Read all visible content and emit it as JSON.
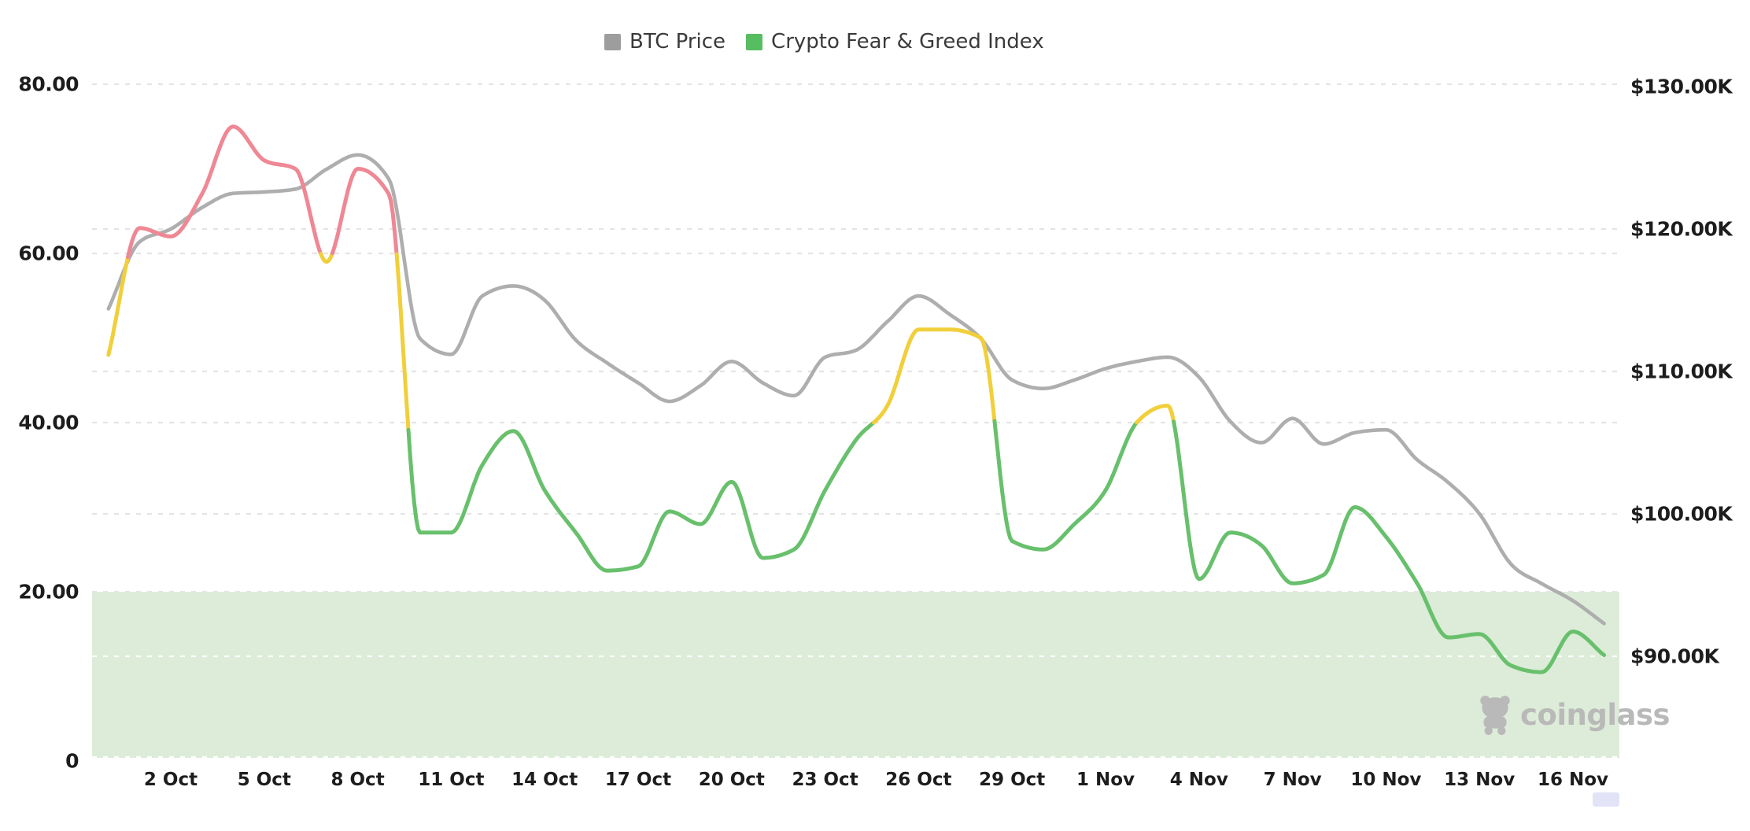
{
  "legend": {
    "items": [
      {
        "label": "BTC Price",
        "color": "#9d9d9d"
      },
      {
        "label": "Crypto Fear & Greed Index",
        "color": "#57bd61"
      }
    ]
  },
  "watermark": {
    "text": "coinglass"
  },
  "chart_data": {
    "type": "line",
    "title": "",
    "x": [
      "30 Sep",
      "1 Oct",
      "2 Oct",
      "3 Oct",
      "4 Oct",
      "5 Oct",
      "6 Oct",
      "7 Oct",
      "8 Oct",
      "9 Oct",
      "10 Oct",
      "11 Oct",
      "12 Oct",
      "13 Oct",
      "14 Oct",
      "15 Oct",
      "16 Oct",
      "17 Oct",
      "18 Oct",
      "19 Oct",
      "20 Oct",
      "21 Oct",
      "22 Oct",
      "23 Oct",
      "24 Oct",
      "25 Oct",
      "26 Oct",
      "27 Oct",
      "28 Oct",
      "29 Oct",
      "30 Oct",
      "31 Oct",
      "1 Nov",
      "2 Nov",
      "3 Nov",
      "4 Nov",
      "5 Nov",
      "6 Nov",
      "7 Nov",
      "8 Nov",
      "9 Nov",
      "10 Nov",
      "11 Nov",
      "12 Nov",
      "13 Nov",
      "14 Nov",
      "15 Nov",
      "16 Nov",
      "17 Nov"
    ],
    "x_tick_labels": [
      "2 Oct",
      "5 Oct",
      "8 Oct",
      "11 Oct",
      "14 Oct",
      "17 Oct",
      "20 Oct",
      "23 Oct",
      "26 Oct",
      "29 Oct",
      "1 Nov",
      "4 Nov",
      "7 Nov",
      "10 Nov",
      "13 Nov",
      "16 Nov"
    ],
    "left_axis": {
      "ticks": [
        "80.00",
        "60.00",
        "40.00",
        "20.00",
        "0"
      ],
      "values": [
        80,
        60,
        40,
        20,
        0
      ],
      "range": [
        0,
        80
      ]
    },
    "right_axis": {
      "ticks": [
        "$130.00K",
        "$120.00K",
        "$110.00K",
        "$100.00K",
        "$90.00K"
      ],
      "values_usd_k": [
        130,
        120,
        110,
        100,
        90
      ],
      "range_usd_k": [
        90,
        130
      ]
    },
    "series": [
      {
        "name": "BTC Price",
        "axis": "right",
        "unit": "USD thousands",
        "color": "#aeaeae",
        "values": [
          114.4,
          119.1,
          120.0,
          121.5,
          122.5,
          122.6,
          122.8,
          124.2,
          125.2,
          123.5,
          112.3,
          111.2,
          115.3,
          116.0,
          115.0,
          112.2,
          110.6,
          109.2,
          107.9,
          109.0,
          110.7,
          109.2,
          108.3,
          111.0,
          111.5,
          113.5,
          115.3,
          114.0,
          112.3,
          109.4,
          108.8,
          109.4,
          110.2,
          110.7,
          111.0,
          109.6,
          106.5,
          105.0,
          106.7,
          104.9,
          105.7,
          105.9,
          103.8,
          102.2,
          100.0,
          96.5,
          95.1,
          93.9,
          92.3
        ]
      },
      {
        "name": "Crypto Fear & Greed Index",
        "axis": "left",
        "unit": "index 0-100",
        "zone_colors": {
          "greed_above_60": "#ef8794",
          "neutral_40_to_60": "#f1cf3b",
          "fear_below_40": "#68c06c"
        },
        "values": [
          48,
          63,
          62,
          67,
          75,
          71,
          70,
          59,
          70,
          67,
          27,
          27,
          35,
          39,
          32,
          27,
          22.5,
          23,
          29.5,
          28,
          33,
          24,
          25,
          32,
          38,
          42,
          51,
          51,
          50,
          26,
          25,
          28,
          32,
          40,
          42,
          21.5,
          27,
          25.5,
          21,
          22,
          30,
          26.5,
          21,
          14.6,
          15,
          11.3,
          10.5,
          15.3,
          12.5
        ]
      }
    ],
    "band": {
      "label": "extreme fear zone",
      "axis": "left",
      "from": 0,
      "to": 20,
      "color": "#dcecd8"
    },
    "grid": true,
    "legend_position": "top-center"
  },
  "colors": {
    "gridline": "#e4e4e4",
    "on_band_gridline": "#ffffff",
    "axis_label": "#1d1d1d",
    "watermark": "#b9b9b9",
    "scroll_handle": "#e3e3f8"
  }
}
